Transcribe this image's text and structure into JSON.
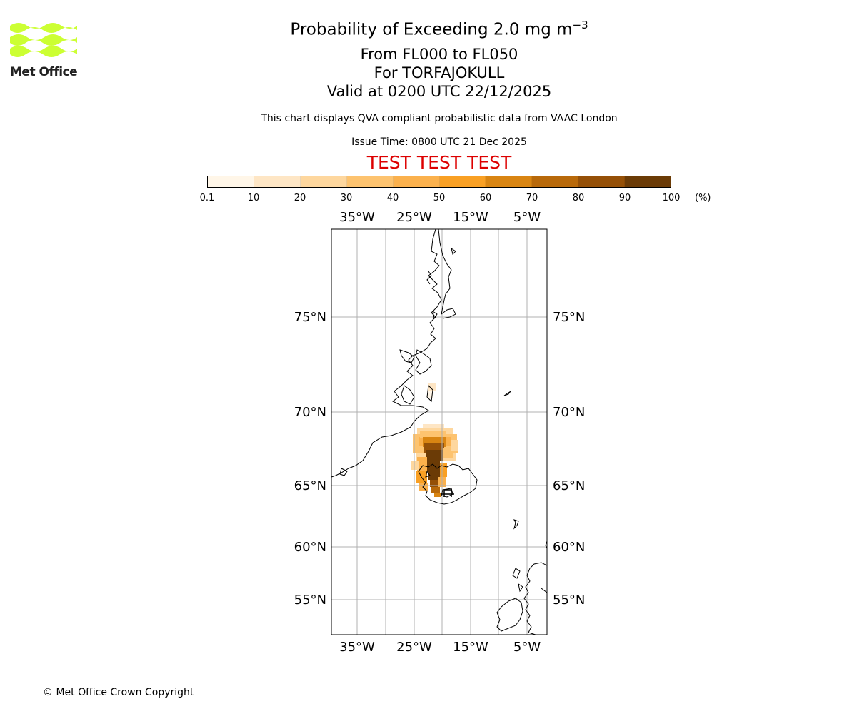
{
  "logo": {
    "name": "Met Office",
    "accent_color": "#ccff33"
  },
  "title": {
    "main": "Probability of Exceeding 2.0 mg m",
    "main_superscript": "−3",
    "levels": "From FL000 to FL050",
    "volcano": "For TORFAJOKULL",
    "valid": "Valid at 0200 UTC 22/12/2025"
  },
  "note": "This chart displays QVA compliant probabilistic data from VAAC London",
  "issue_time": "Issue Time: 0800 UTC 21 Dec 2025",
  "test_banner": "TEST TEST TEST",
  "colorbar": {
    "ticks": [
      "0.1",
      "10",
      "20",
      "30",
      "40",
      "50",
      "60",
      "70",
      "80",
      "90",
      "100"
    ],
    "unit": "(%)",
    "colors": [
      "#fff6e8",
      "#fee6c5",
      "#fed79e",
      "#fdc36f",
      "#fbb14d",
      "#f9a024",
      "#d98512",
      "#b8690a",
      "#955007",
      "#6b3b06"
    ]
  },
  "map": {
    "lon_labels": [
      "35°W",
      "25°W",
      "15°W",
      "5°W"
    ],
    "lat_labels": [
      "75°N",
      "70°N",
      "65°N",
      "60°N",
      "55°N"
    ]
  },
  "copyright": "© Met Office Crown Copyright"
}
